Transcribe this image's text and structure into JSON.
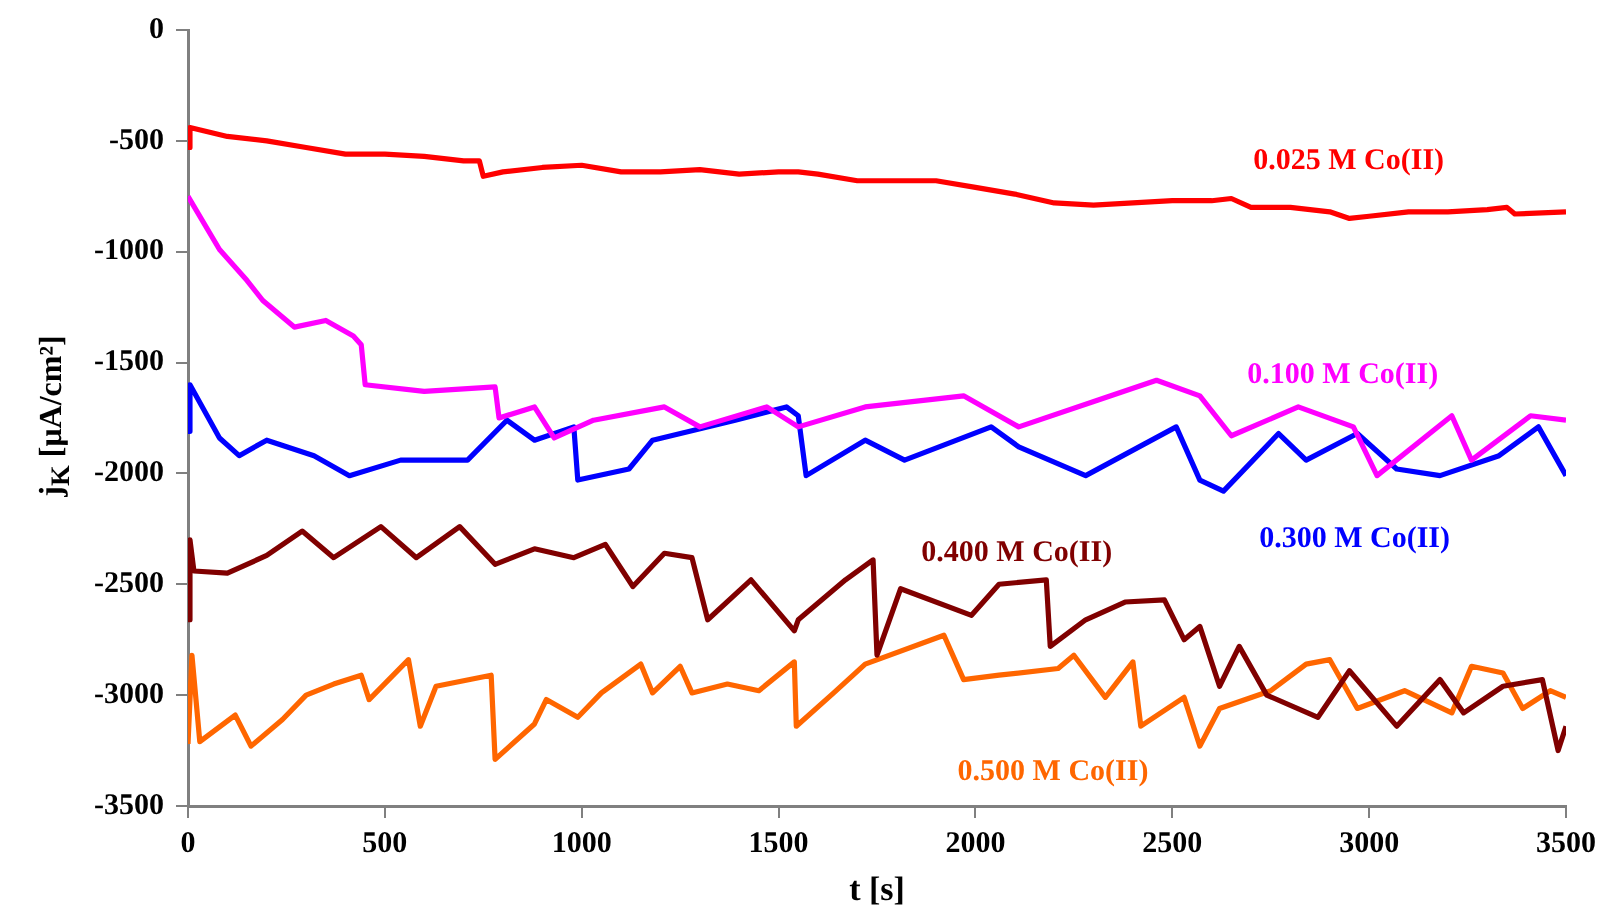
{
  "chart_data": {
    "type": "line",
    "xlabel": "t [s]",
    "ylabel": "j$_{K}$ [μA/cm²]",
    "xlim": [
      0,
      3500
    ],
    "xticks": [
      0,
      500,
      1000,
      1500,
      2000,
      2500,
      3000,
      3500
    ],
    "ylim": [
      -3500,
      0
    ],
    "yticks": [
      -3500,
      -3000,
      -2500,
      -2000,
      -1500,
      -1000,
      -500,
      0
    ],
    "grid": false,
    "legend": false,
    "marker": "none",
    "line_style": "solid",
    "series": [
      {
        "name": "0.025 M Co(II)",
        "color": "#ff0000",
        "x": [
          0,
          5,
          100,
          200,
          300,
          400,
          500,
          600,
          700,
          740,
          750,
          800,
          900,
          1000,
          1100,
          1200,
          1300,
          1400,
          1500,
          1550,
          1600,
          1700,
          1800,
          1900,
          2000,
          2100,
          2200,
          2300,
          2400,
          2500,
          2600,
          2650,
          2700,
          2800,
          2900,
          2950,
          3000,
          3100,
          3200,
          3300,
          3350,
          3370,
          3500
        ],
        "values": [
          -530,
          -440,
          -480,
          -500,
          -530,
          -560,
          -560,
          -570,
          -590,
          -590,
          -660,
          -640,
          -620,
          -610,
          -640,
          -640,
          -630,
          -650,
          -640,
          -640,
          -650,
          -680,
          -680,
          -680,
          -710,
          -740,
          -780,
          -790,
          -780,
          -770,
          -770,
          -760,
          -800,
          -800,
          -820,
          -850,
          -840,
          -820,
          -820,
          -810,
          -800,
          -830,
          -820
        ]
      },
      {
        "name": "0.100 M Co(II)",
        "color": "#ff00ff",
        "x": [
          0,
          80,
          150,
          190,
          270,
          350,
          420,
          440,
          450,
          600,
          780,
          790,
          880,
          930,
          1030,
          1210,
          1300,
          1470,
          1550,
          1720,
          1970,
          2110,
          2310,
          2460,
          2570,
          2650,
          2820,
          2960,
          3020,
          3210,
          3260,
          3410,
          3500
        ],
        "values": [
          -750,
          -990,
          -1130,
          -1220,
          -1340,
          -1310,
          -1380,
          -1420,
          -1600,
          -1630,
          -1610,
          -1750,
          -1700,
          -1840,
          -1760,
          -1700,
          -1790,
          -1700,
          -1790,
          -1700,
          -1650,
          -1790,
          -1670,
          -1580,
          -1650,
          -1830,
          -1700,
          -1790,
          -2010,
          -1740,
          -1940,
          -1740,
          -1760
        ]
      },
      {
        "name": "0.300 M Co(II)",
        "color": "#0000ff",
        "x": [
          0,
          5,
          80,
          130,
          200,
          320,
          410,
          540,
          710,
          810,
          880,
          980,
          990,
          1120,
          1180,
          1390,
          1520,
          1550,
          1570,
          1720,
          1820,
          2040,
          2110,
          2280,
          2510,
          2570,
          2630,
          2770,
          2840,
          2970,
          3070,
          3180,
          3330,
          3430,
          3500
        ],
        "values": [
          -1810,
          -1600,
          -1840,
          -1920,
          -1850,
          -1920,
          -2010,
          -1940,
          -1940,
          -1760,
          -1850,
          -1790,
          -2030,
          -1980,
          -1850,
          -1760,
          -1700,
          -1740,
          -2010,
          -1850,
          -1940,
          -1790,
          -1880,
          -2010,
          -1790,
          -2030,
          -2080,
          -1820,
          -1940,
          -1820,
          -1980,
          -2010,
          -1920,
          -1790,
          -2010
        ]
      },
      {
        "name": "0.400 M Co(II)",
        "color": "#800000",
        "x": [
          0,
          5,
          15,
          100,
          200,
          290,
          370,
          490,
          580,
          690,
          780,
          880,
          980,
          1060,
          1130,
          1210,
          1280,
          1320,
          1430,
          1540,
          1550,
          1670,
          1740,
          1750,
          1810,
          1990,
          2060,
          2180,
          2190,
          2280,
          2380,
          2480,
          2530,
          2570,
          2620,
          2670,
          2740,
          2870,
          2950,
          3070,
          3180,
          3240,
          3340,
          3440,
          3480,
          3500
        ],
        "values": [
          -2660,
          -2300,
          -2440,
          -2450,
          -2370,
          -2260,
          -2380,
          -2240,
          -2380,
          -2240,
          -2410,
          -2340,
          -2380,
          -2320,
          -2510,
          -2360,
          -2380,
          -2660,
          -2480,
          -2710,
          -2660,
          -2480,
          -2390,
          -2820,
          -2520,
          -2640,
          -2500,
          -2480,
          -2780,
          -2660,
          -2580,
          -2570,
          -2750,
          -2690,
          -2960,
          -2780,
          -3000,
          -3100,
          -2890,
          -3140,
          -2930,
          -3080,
          -2960,
          -2930,
          -3250,
          -3140
        ]
      },
      {
        "name": "0.500 M Co(II)",
        "color": "#ff6600",
        "x": [
          0,
          10,
          30,
          120,
          160,
          240,
          300,
          370,
          440,
          460,
          560,
          590,
          630,
          770,
          780,
          880,
          910,
          990,
          1050,
          1150,
          1180,
          1250,
          1280,
          1370,
          1450,
          1540,
          1545,
          1640,
          1720,
          1920,
          1970,
          2060,
          2210,
          2250,
          2330,
          2400,
          2420,
          2530,
          2570,
          2620,
          2750,
          2840,
          2900,
          2970,
          3090,
          3210,
          3260,
          3340,
          3390,
          3460,
          3500
        ],
        "values": [
          -3220,
          -2820,
          -3210,
          -3090,
          -3230,
          -3110,
          -3000,
          -2950,
          -2910,
          -3020,
          -2840,
          -3140,
          -2960,
          -2910,
          -3290,
          -3130,
          -3020,
          -3100,
          -2990,
          -2860,
          -2990,
          -2870,
          -2990,
          -2950,
          -2980,
          -2850,
          -3140,
          -2990,
          -2860,
          -2730,
          -2930,
          -2910,
          -2880,
          -2820,
          -3010,
          -2850,
          -3140,
          -3010,
          -3230,
          -3060,
          -2980,
          -2860,
          -2840,
          -3060,
          -2980,
          -3080,
          -2870,
          -2900,
          -3060,
          -2980,
          -3010
        ]
      }
    ]
  }
}
